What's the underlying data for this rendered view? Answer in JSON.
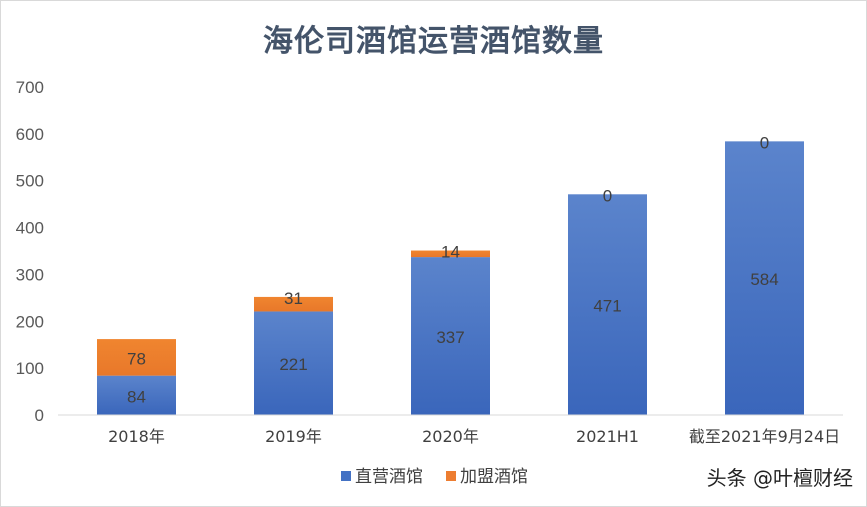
{
  "chart_data": {
    "type": "bar",
    "stacked": true,
    "title": "海伦司酒馆运营酒馆数量",
    "categories": [
      "2018年",
      "2019年",
      "2020年",
      "2021H1",
      "截至2021年9月24日"
    ],
    "series": [
      {
        "name": "直营酒馆",
        "values": [
          84,
          221,
          337,
          471,
          584
        ],
        "color": "#4472c4"
      },
      {
        "name": "加盟酒馆",
        "values": [
          78,
          31,
          14,
          0,
          0
        ],
        "color": "#ed7d31"
      }
    ],
    "yticks": [
      "0",
      "100",
      "200",
      "300",
      "400",
      "500",
      "600",
      "700"
    ],
    "ylim": [
      0,
      700
    ],
    "grid": false,
    "legend_position": "bottom",
    "xlabel": "",
    "ylabel": ""
  },
  "watermark": "头条 @叶檀财经"
}
